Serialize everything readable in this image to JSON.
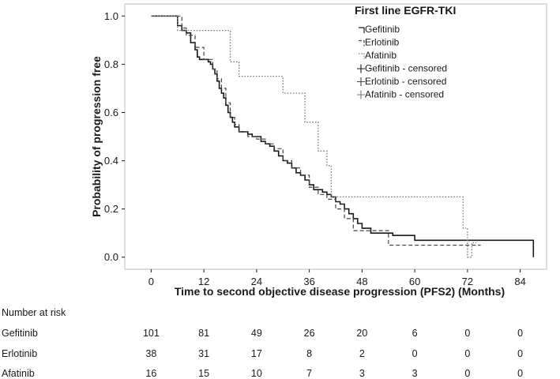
{
  "chart_data": {
    "type": "line",
    "subtype": "kaplan-meier",
    "xlabel": "Time to second objective disease progression (PFS2) (Months)",
    "ylabel": "Probability of progression free",
    "xlim": [
      -6,
      90
    ],
    "ylim": [
      -0.05,
      1.05
    ],
    "x_ticks": [
      0,
      12,
      24,
      36,
      48,
      60,
      72,
      84
    ],
    "y_ticks": [
      0.0,
      0.2,
      0.4,
      0.6,
      0.8,
      1.0
    ],
    "y_tick_labels": [
      "0.0",
      "0.2",
      "0.4",
      "0.6",
      "0.8",
      "1.0"
    ],
    "grid": false,
    "legend": {
      "title": "First line EGFR-TKI",
      "position": "top-right",
      "entries": [
        "Gefitinib",
        "Erlotinib",
        "Afatinib",
        "Gefitinib - censored",
        "Erlotinib - censored",
        "Afatinib - censored"
      ]
    },
    "series": [
      {
        "name": "Gefitinib",
        "color": "#1a1a1a",
        "dash": "solid",
        "x": [
          0,
          5,
          6,
          7,
          8,
          9,
          10,
          10.5,
          11,
          12,
          13,
          13.5,
          14,
          14.5,
          15,
          15.5,
          16,
          16.5,
          17,
          17.5,
          18,
          18.5,
          19,
          20,
          21,
          22,
          23,
          24,
          25,
          26,
          27,
          28,
          29,
          30,
          31,
          32,
          33,
          34,
          35,
          36,
          37,
          38,
          39,
          40,
          41,
          42,
          43,
          44,
          45,
          46,
          47,
          48,
          50,
          55,
          60,
          72,
          87
        ],
        "y": [
          1.0,
          1.0,
          0.96,
          0.94,
          0.93,
          0.89,
          0.86,
          0.83,
          0.82,
          0.82,
          0.81,
          0.8,
          0.78,
          0.76,
          0.73,
          0.7,
          0.68,
          0.66,
          0.63,
          0.6,
          0.58,
          0.56,
          0.54,
          0.52,
          0.52,
          0.51,
          0.5,
          0.5,
          0.48,
          0.47,
          0.46,
          0.44,
          0.42,
          0.4,
          0.39,
          0.37,
          0.35,
          0.34,
          0.32,
          0.3,
          0.28,
          0.28,
          0.27,
          0.26,
          0.25,
          0.23,
          0.22,
          0.2,
          0.18,
          0.16,
          0.14,
          0.12,
          0.1,
          0.09,
          0.07,
          0.07,
          0.0
        ]
      },
      {
        "name": "Erlotinib",
        "color": "#444444",
        "dash": "dashed",
        "x": [
          0,
          5,
          7,
          8,
          10,
          12,
          14,
          15,
          16,
          17,
          18,
          19,
          20,
          22,
          24,
          26,
          28,
          30,
          32,
          34,
          36,
          38,
          40,
          42,
          44,
          46,
          48,
          53,
          54,
          60,
          75
        ],
        "y": [
          1.0,
          1.0,
          0.95,
          0.92,
          0.87,
          0.82,
          0.78,
          0.74,
          0.7,
          0.64,
          0.58,
          0.55,
          0.52,
          0.5,
          0.49,
          0.47,
          0.45,
          0.4,
          0.37,
          0.34,
          0.29,
          0.26,
          0.24,
          0.2,
          0.16,
          0.11,
          0.11,
          0.11,
          0.05,
          0.05,
          0.05
        ]
      },
      {
        "name": "Afatinib",
        "color": "#7a7a7a",
        "dash": "dotted",
        "x": [
          0,
          6,
          8,
          12,
          16,
          18,
          20,
          25,
          30,
          35,
          38,
          40,
          41,
          45,
          50,
          55,
          60,
          65,
          70,
          71,
          72,
          73,
          74
        ],
        "y": [
          1.0,
          0.94,
          0.94,
          0.94,
          0.94,
          0.81,
          0.75,
          0.75,
          0.68,
          0.56,
          0.44,
          0.38,
          0.25,
          0.25,
          0.25,
          0.25,
          0.25,
          0.25,
          0.25,
          0.12,
          0.0,
          0.06,
          0.06
        ]
      }
    ],
    "risk_table": {
      "title": "Number at risk",
      "times": [
        0,
        12,
        24,
        36,
        48,
        60,
        72,
        84
      ],
      "rows": [
        {
          "name": "Gefitinib",
          "values": [
            "101",
            "81",
            "49",
            "26",
            "20",
            "6",
            "0",
            "0"
          ]
        },
        {
          "name": "Erlotinib",
          "values": [
            "38",
            "31",
            "17",
            "8",
            "2",
            "0",
            "0",
            "0"
          ]
        },
        {
          "name": "Afatinib",
          "values": [
            "16",
            "15",
            "10",
            "7",
            "3",
            "3",
            "0",
            "0"
          ]
        }
      ]
    }
  }
}
